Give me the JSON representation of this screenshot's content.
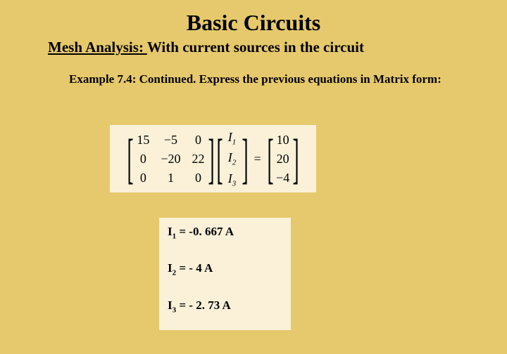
{
  "title": "Basic Circuits",
  "subtitle_underline": "Mesh Analysis: ",
  "subtitle_rest": "With current sources in the circuit",
  "example_text": "Example 7.4:  Continued.  Express the previous equations in Matrix form:",
  "matrix": {
    "A": [
      [
        "15",
        "−5",
        "0"
      ],
      [
        "0",
        "−20",
        "22"
      ],
      [
        "0",
        "1",
        "0"
      ]
    ],
    "x_labels": [
      "I",
      "I",
      "I"
    ],
    "x_subs": [
      "1",
      "2",
      "3"
    ],
    "b": [
      "10",
      "20",
      "−4"
    ],
    "eq": "=",
    "background_color": "#faf1d8",
    "fontsize": 18
  },
  "results": {
    "lines": [
      {
        "label": "I",
        "sub": "1",
        "eq": " = -0. 667 A"
      },
      {
        "label": "I",
        "sub": "2",
        "eq": " = - 4 A"
      },
      {
        "label": "I",
        "sub": "3",
        "eq": " = - 2. 73 A"
      }
    ],
    "background_color": "#faf1d8"
  },
  "page": {
    "background_color": "#e6c96c",
    "text_color": "#000000",
    "title_fontsize": 32,
    "subtitle_fontsize": 21,
    "body_fontsize": 17
  }
}
